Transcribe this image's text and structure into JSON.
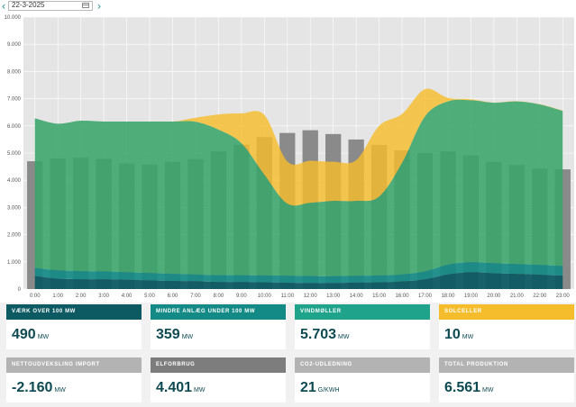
{
  "date_picker": {
    "value": "22-3-2025",
    "prev_symbol": "‹",
    "next_symbol": "›",
    "calendar_icon": "calendar-icon"
  },
  "colors": {
    "bars": "#8a8a8a",
    "plant_over_100": "#0d5a63",
    "small_plant": "#138a86",
    "wind": "#3aa56a",
    "solar": "#f5bd2c",
    "plot_bg": "#e5e5e5"
  },
  "chart_data": {
    "type": "area",
    "title": "",
    "xlabel": "",
    "ylabel": "",
    "stacked": true,
    "grid": true,
    "ylim": [
      0,
      10000
    ],
    "yticks": [
      0,
      1000,
      2000,
      3000,
      4000,
      5000,
      6000,
      7000,
      8000,
      9000,
      10000
    ],
    "ytick_labels": [
      "0",
      "1.000",
      "2.000",
      "3.000",
      "4.000",
      "5.000",
      "6.000",
      "7.000",
      "8.000",
      "9.000",
      "10.000"
    ],
    "x_labels": [
      "0:00",
      "1:00",
      "2:00",
      "3:00",
      "4:00",
      "5:00",
      "6:00",
      "7:00",
      "8:00",
      "9:00",
      "10:00",
      "11:00",
      "12:00",
      "13:00",
      "14:00",
      "15:00",
      "16:00",
      "17:00",
      "18:00",
      "19:00",
      "20:00",
      "21:00",
      "22:00",
      "23:00"
    ],
    "bar_series": {
      "values": [
        4700,
        4800,
        4830,
        4790,
        4620,
        4580,
        4680,
        4780,
        5060,
        5310,
        5590,
        5740,
        5840,
        5700,
        5500,
        5300,
        5100,
        5000,
        5060,
        4920,
        4680,
        4560,
        4430,
        4400
      ]
    },
    "area_series": [
      {
        "name": "Værk over 100 MW",
        "values": [
          480,
          380,
          360,
          360,
          340,
          320,
          300,
          290,
          260,
          260,
          250,
          230,
          220,
          220,
          240,
          250,
          280,
          360,
          540,
          620,
          580,
          560,
          530,
          490
        ]
      },
      {
        "name": "Mindre anlæg under 100 MW",
        "values": [
          300,
          310,
          300,
          290,
          280,
          270,
          260,
          250,
          250,
          250,
          250,
          260,
          260,
          250,
          250,
          250,
          260,
          290,
          360,
          370,
          370,
          360,
          360,
          359
        ]
      },
      {
        "name": "Vindmøller",
        "values": [
          5500,
          5390,
          5530,
          5510,
          5540,
          5570,
          5600,
          5610,
          5350,
          4850,
          3700,
          2650,
          2690,
          2770,
          2750,
          2900,
          4100,
          5700,
          6000,
          5950,
          5900,
          5980,
          5900,
          5703
        ]
      },
      {
        "name": "Solceller",
        "values": [
          0,
          0,
          0,
          0,
          0,
          0,
          0,
          150,
          560,
          1100,
          2200,
          1550,
          1550,
          1440,
          1500,
          2600,
          1800,
          1000,
          130,
          40,
          10,
          10,
          10,
          10
        ]
      }
    ]
  },
  "cards": [
    {
      "title": "VÆRK OVER 100 MW",
      "value": "490",
      "unit": "MW",
      "color": "#0d5a63"
    },
    {
      "title": "MINDRE ANLÆG UNDER 100 MW",
      "value": "359",
      "unit": "MW",
      "color": "#138a86"
    },
    {
      "title": "VINDMØLLER",
      "value": "5.703",
      "unit": "MW",
      "color": "#1fa38b"
    },
    {
      "title": "SOLCELLER",
      "value": "10",
      "unit": "MW",
      "color": "#f5bd2c"
    },
    {
      "title": "NETTOUDVEKSLING IMPORT",
      "value": "-2.160",
      "unit": "MW",
      "color": "#b3b3b3"
    },
    {
      "title": "ELFORBRUG",
      "value": "4.401",
      "unit": "MW",
      "color": "#7d7d7d"
    },
    {
      "title": "CO2-UDLEDNING",
      "value": "21",
      "unit": "G/KWH",
      "color": "#b3b3b3"
    },
    {
      "title": "TOTAL PRODUKTION",
      "value": "6.561",
      "unit": "MW",
      "color": "#b3b3b3"
    }
  ]
}
